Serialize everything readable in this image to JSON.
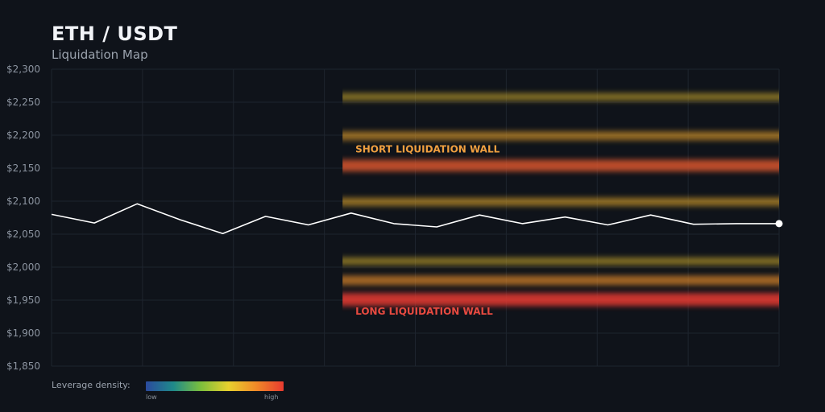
{
  "header": {
    "title": "ETH / USDT",
    "subtitle": "Liquidation Map"
  },
  "colors": {
    "background": "#0f131a",
    "price_line": "#ffffff",
    "grid": "#1e242e",
    "axis_text": "#8c94a0",
    "short_label": "#f0a040",
    "long_label": "#e84a40",
    "density_gradient": [
      "#2b4a9e",
      "#1f8a8a",
      "#7cbf3c",
      "#e8d02e",
      "#f08a28",
      "#e83a30"
    ]
  },
  "legend": {
    "label": "Leverage density:",
    "low": "low",
    "high": "high"
  },
  "chart_data": {
    "type": "line",
    "ylim": [
      1850,
      2300
    ],
    "yticks": [
      2300,
      2250,
      2200,
      2150,
      2100,
      2050,
      2000,
      1950,
      1900,
      1850
    ],
    "ytick_labels": [
      "$2,300",
      "$2,250",
      "$2,200",
      "$2,150",
      "$2,100",
      "$2,050",
      "$2,000",
      "$1,950",
      "$1,900",
      "$1,850"
    ],
    "xlim": [
      0,
      17
    ],
    "grid": true,
    "price": {
      "x": [
        0,
        1,
        2,
        3,
        4,
        5,
        6,
        7,
        8,
        9,
        10,
        11,
        12,
        13,
        14,
        15,
        16,
        17
      ],
      "y": [
        2080,
        2067,
        2096,
        2072,
        2051,
        2077,
        2064,
        2082,
        2066,
        2061,
        2079,
        2066,
        2076,
        2064,
        2079,
        2065,
        2066,
        2066
      ]
    },
    "liquidation_bands": {
      "x_start": 6.8,
      "x_end": 17,
      "levels": [
        {
          "price": 2258,
          "intensity": 0.35
        },
        {
          "price": 2199,
          "intensity": 0.5
        },
        {
          "price": 2154,
          "intensity": 0.85
        },
        {
          "price": 2099,
          "intensity": 0.45
        },
        {
          "price": 2009,
          "intensity": 0.35
        },
        {
          "price": 1980,
          "intensity": 0.6
        },
        {
          "price": 1951,
          "intensity": 1.0
        }
      ]
    },
    "annotations": [
      {
        "text": "SHORT LIQUIDATION WALL",
        "x": 7.1,
        "y": 2174,
        "kind": "short"
      },
      {
        "text": "LONG LIQUIDATION WALL",
        "x": 7.1,
        "y": 1928,
        "kind": "long"
      }
    ]
  }
}
